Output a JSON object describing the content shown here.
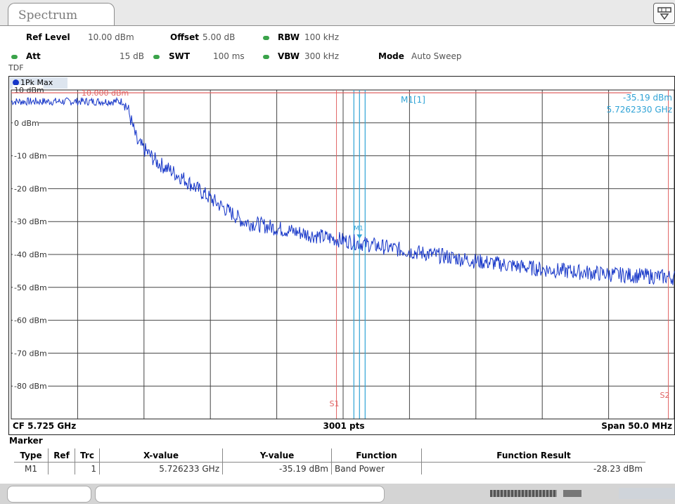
{
  "tab": {
    "label": "Spectrum"
  },
  "settings": {
    "ref_level_label": "Ref Level",
    "ref_level_value": "10.00 dBm",
    "offset_label": "Offset",
    "offset_value": "5.00 dB",
    "rbw_label": "RBW",
    "rbw_value": "100 kHz",
    "att_label": "Att",
    "att_value": "15 dB",
    "swt_label": "SWT",
    "swt_value": "100 ms",
    "vbw_label": "VBW",
    "vbw_value": "300 kHz",
    "mode_label": "Mode",
    "mode_value": "Auto Sweep",
    "tdf": "TDF"
  },
  "trace_label": "1Pk Max",
  "marker_readout": {
    "name": "M1[1]",
    "level": "-35.19 dBm",
    "freq": "5.7262330 GHz"
  },
  "limit_line": {
    "label": "10.000 dBm",
    "value": 10
  },
  "footer": {
    "cf": "CF 5.725 GHz",
    "pts": "3001 pts",
    "span": "Span 50.0 MHz"
  },
  "y_ticks": [
    "10 dBm",
    "0 dBm",
    "-10 dBm",
    "-20 dBm",
    "-30 dBm",
    "-40 dBm",
    "-50 dBm",
    "-60 dBm",
    "-70 dBm",
    "-80 dBm"
  ],
  "marker_table": {
    "title": "Marker",
    "headers": [
      "Type",
      "Ref",
      "Trc",
      "X-value",
      "Y-value",
      "Function",
      "Function Result"
    ],
    "rows": [
      {
        "type": "M1",
        "ref": "",
        "trc": "1",
        "x": "5.726233 GHz",
        "y": "-35.19 dBm",
        "function": "Band Power",
        "result": "-28.23 dBm"
      }
    ]
  },
  "marker_labels": {
    "m1": "M1",
    "s1": "S1",
    "s2": "S2"
  },
  "colors": {
    "trace": "#1636c8",
    "limit": "#e06464",
    "marker": "#2fa3d6",
    "grid": "#444444",
    "status_green": "#3aa34a"
  },
  "chart_data": {
    "type": "line",
    "title": "",
    "xlabel": "",
    "ylabel": "",
    "xlim": [
      5.7,
      5.75
    ],
    "ylim": [
      -90,
      10
    ],
    "x_units": "GHz",
    "y_units": "dBm",
    "series": [
      {
        "name": "1Pk Max",
        "x": [
          5.7,
          5.7035,
          5.7085,
          5.7088,
          5.7095,
          5.711,
          5.713,
          5.715,
          5.7175,
          5.7225,
          5.7262,
          5.73,
          5.735,
          5.74,
          5.745,
          5.75
        ],
        "y": [
          6.5,
          6.5,
          6.5,
          4,
          -6,
          -12,
          -17,
          -23,
          -30,
          -34,
          -36.5,
          -39,
          -42,
          -44.5,
          -46,
          -47
        ]
      }
    ],
    "limit_line": {
      "value": 10
    },
    "markers": [
      {
        "name": "M1",
        "x": 5.726233,
        "y": -35.19
      }
    ],
    "vertical_lines": [
      {
        "name": "S1",
        "x": 5.7245
      },
      {
        "name": "S2",
        "x": 5.7495
      }
    ]
  }
}
